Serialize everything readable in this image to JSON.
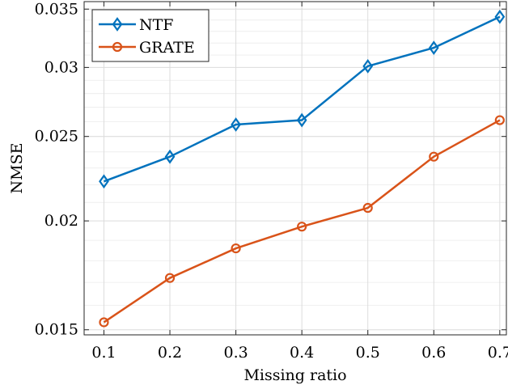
{
  "chart_data": {
    "type": "line",
    "xlabel": "Missing ratio",
    "ylabel": "NMSE",
    "y_scale": "log",
    "xlim": [
      0.07,
      0.71
    ],
    "ylim": [
      0.0148,
      0.0357
    ],
    "x_ticks": [
      "0.1",
      "0.2",
      "0.3",
      "0.4",
      "0.5",
      "0.6",
      "0.7"
    ],
    "y_ticks": [
      "0.015",
      "0.02",
      "0.025",
      "0.03",
      "0.035"
    ],
    "grid": true,
    "legend_position": "top-left",
    "x": [
      0.1,
      0.2,
      0.3,
      0.4,
      0.5,
      0.6,
      0.7
    ],
    "series": [
      {
        "name": "NTF",
        "marker": "diamond",
        "color": "#0072bd",
        "values": [
          0.0222,
          0.0237,
          0.0258,
          0.0261,
          0.0301,
          0.0316,
          0.0343
        ]
      },
      {
        "name": "GRATE",
        "marker": "circle",
        "color": "#d95319",
        "values": [
          0.0153,
          0.0172,
          0.0186,
          0.0197,
          0.0207,
          0.0237,
          0.0261
        ]
      }
    ]
  }
}
